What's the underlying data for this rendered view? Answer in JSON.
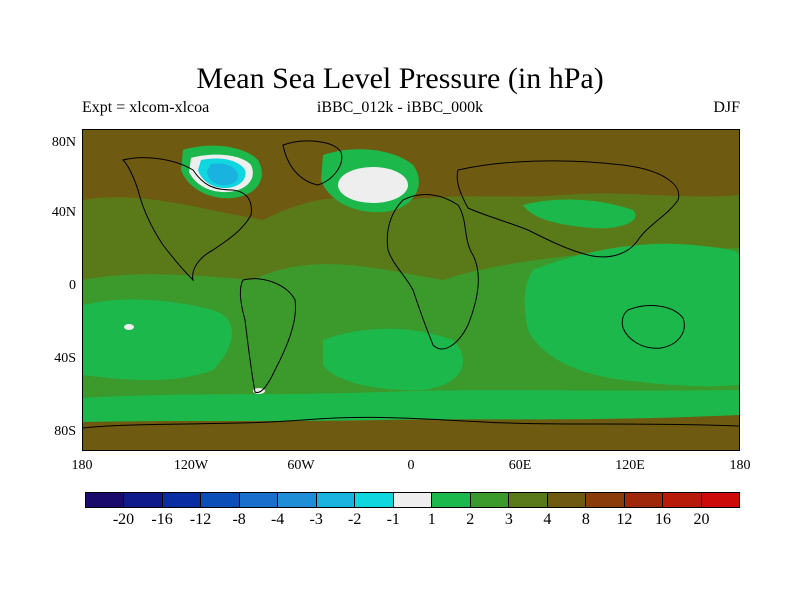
{
  "title": "Mean Sea Level Pressure (in hPa)",
  "left_subtitle": "Expt = xlcom-xlcoa",
  "center_subtitle": "iBBC_012k - iBBC_000k",
  "right_subtitle": "DJF",
  "lat_labels": [
    "80N",
    "40N",
    "0",
    "40S",
    "80S"
  ],
  "lon_labels": [
    "180",
    "120W",
    "60W",
    "0",
    "60E",
    "120E",
    "180"
  ],
  "colorbar": {
    "colors": [
      "#1a0a6b",
      "#101a8a",
      "#0a2da3",
      "#0a4fb8",
      "#1a6fcc",
      "#1e8fd6",
      "#1ab3e0",
      "#10d6e0",
      "#eeeeee",
      "#1cb84c",
      "#3c9a2c",
      "#5a7a1a",
      "#6e5a10",
      "#8a3c0a",
      "#a0280a",
      "#b81a0a",
      "#cc0a0a"
    ],
    "labels": [
      "-20",
      "-16",
      "-12",
      "-8",
      "-4",
      "-3",
      "-2",
      "-1",
      "1",
      "2",
      "3",
      "4",
      "8",
      "12",
      "16",
      "20"
    ]
  },
  "map_colors": {
    "brown": "#6e5a10",
    "dark_green": "#5a7a1a",
    "mid_green": "#3c9a2c",
    "bright_green": "#1cb84c",
    "white": "#eeeeee",
    "cyan": "#10d6e0",
    "light_blue": "#1ab3e0",
    "blue": "#1e8fd6"
  }
}
